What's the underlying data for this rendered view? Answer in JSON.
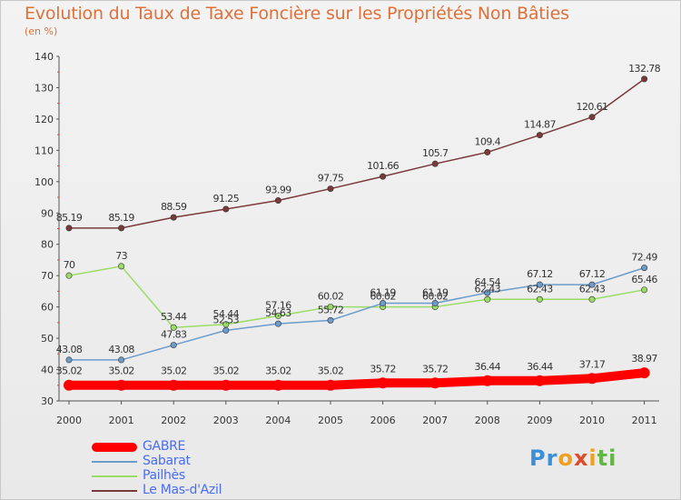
{
  "chart_data": {
    "type": "line",
    "title": "Evolution du Taux de Taxe Foncière sur les Propriétés Non Bâties",
    "subtitle": "(en %)",
    "xlabel": "",
    "ylabel": "",
    "ylim": [
      30,
      140
    ],
    "yticks": [
      30,
      40,
      50,
      60,
      70,
      80,
      90,
      100,
      110,
      120,
      130,
      140
    ],
    "grid": false,
    "legend": "bottom-left",
    "x": [
      "2000",
      "2001",
      "2002",
      "2003",
      "2004",
      "2005",
      "2006",
      "2007",
      "2008",
      "2009",
      "2010",
      "2011"
    ],
    "series": [
      {
        "name": "GABRE",
        "color": "#ff0000",
        "values": [
          35.02,
          35.02,
          35.02,
          35.02,
          35.02,
          35.02,
          35.72,
          35.72,
          36.44,
          36.44,
          37.17,
          38.97
        ],
        "labels": [
          "35.02",
          "35.02",
          "35.02",
          "35.02",
          "35.02",
          "35.02",
          "35.72",
          "35.72",
          "36.44",
          "36.44",
          "37.17",
          "38.97"
        ]
      },
      {
        "name": "Sabarat",
        "color": "#6b9ccc",
        "values": [
          43.08,
          43.08,
          47.83,
          52.53,
          54.63,
          55.72,
          61.19,
          61.19,
          64.54,
          67.12,
          67.12,
          72.49
        ],
        "labels": [
          "43.08",
          "43.08",
          "47.83",
          "52.53",
          "54.63",
          "55.72",
          "61.19",
          "61.19",
          "64.54",
          "67.12",
          "67.12",
          "72.49"
        ]
      },
      {
        "name": "Pailhès",
        "color": "#99dd66",
        "values": [
          70,
          73,
          53.44,
          54.44,
          57.16,
          60.02,
          60.02,
          60.02,
          62.43,
          62.43,
          62.43,
          65.46
        ],
        "labels": [
          "70",
          "73",
          "53.44",
          "54.44",
          "57.16",
          "60.02",
          "60.02",
          "60.02",
          "62.43",
          "62.43",
          "62.43",
          "65.46"
        ]
      },
      {
        "name": "Le Mas-d'Azil",
        "color": "#7a3a3a",
        "values": [
          85.19,
          85.19,
          88.59,
          91.25,
          93.99,
          97.75,
          101.66,
          105.7,
          109.4,
          114.87,
          120.61,
          132.78
        ],
        "labels": [
          "85.19",
          "85.19",
          "88.59",
          "91.25",
          "93.99",
          "97.75",
          "101.66",
          "105.7",
          "109.4",
          "114.87",
          "120.61",
          "132.78"
        ]
      }
    ]
  },
  "logo": {
    "letters": [
      "P",
      "r",
      "o",
      "x",
      "i",
      "t",
      "i"
    ],
    "colors": [
      "#3a8fd8",
      "#3a8fd8",
      "#f0a020",
      "#e04a28",
      "#f0a020",
      "#60b840",
      "#60b840"
    ]
  }
}
